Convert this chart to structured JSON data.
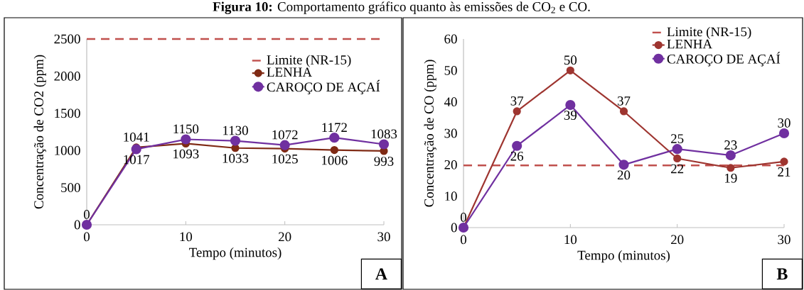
{
  "chart_data": [
    {
      "type": "line",
      "title": "**Figura 10:** Comportamento gráfico quanto às emissões de CO$_{2}$ e CO.",
      "xlabel": "Tempo (minutos)",
      "ylabel": "Concentração de CO2 (ppm)",
      "x": [
        0,
        5,
        10,
        15,
        20,
        25,
        30
      ],
      "xlim": [
        0,
        30
      ],
      "xticks": [
        0,
        10,
        20,
        30
      ],
      "ylim": [
        0,
        2500
      ],
      "yticks": [
        0,
        500,
        1000,
        1500,
        2000,
        2500
      ],
      "series": [
        {
          "name": "LENHA",
          "color": "#7f2a14",
          "values": [
            0,
            1041,
            1093,
            1033,
            1025,
            1006,
            993
          ],
          "value_labels": [
            "0",
            "1041",
            "1093",
            "1033",
            "1025",
            "1006",
            "993"
          ]
        },
        {
          "name": "CAROÇO DE AÇAÍ",
          "color": "#7030a0",
          "values": [
            0,
            1017,
            1150,
            1130,
            1072,
            1172,
            1083
          ],
          "value_labels": [
            null,
            "1017",
            "1150",
            "1130",
            "1072",
            "1172",
            "1083"
          ]
        }
      ],
      "ref_lines": [
        {
          "axis": "y",
          "value": 2500,
          "label": "Limite (NR-15)",
          "color": "#c0504d",
          "line_style": "dashed"
        }
      ],
      "legend": "top right",
      "marker": "circle",
      "line_style": "solid",
      "annotations": [
        "A"
      ]
    },
    {
      "type": "line",
      "xlabel": "Tempo (minutos)",
      "ylabel": "Concentração de CO (ppm)",
      "x": [
        0,
        5,
        10,
        15,
        20,
        25,
        30
      ],
      "xlim": [
        0,
        30
      ],
      "xticks": [
        0,
        10,
        20,
        30
      ],
      "ylim": [
        0,
        60
      ],
      "yticks": [
        0,
        10,
        20,
        30,
        40,
        50,
        60
      ],
      "series": [
        {
          "name": "LENHA",
          "color": "#9e3530",
          "values": [
            0,
            37,
            50,
            37,
            22,
            19,
            21
          ],
          "value_labels": [
            "0",
            "37",
            "50",
            "37",
            "22",
            "19",
            "21"
          ]
        },
        {
          "name": "CAROÇO DE AÇAÍ",
          "color": "#7030a0",
          "values": [
            0,
            26,
            39,
            20,
            25,
            23,
            30
          ],
          "value_labels": [
            null,
            "26",
            "39",
            "20",
            "25",
            "23",
            "30"
          ]
        }
      ],
      "ref_lines": [
        {
          "axis": "y",
          "value": 19.8,
          "label": "Limite (NR-15)",
          "color": "#c0504d",
          "line_style": "dashed"
        }
      ],
      "legend": "top right",
      "marker": "circle",
      "line_style": "solid",
      "annotations": [
        "B"
      ]
    }
  ]
}
